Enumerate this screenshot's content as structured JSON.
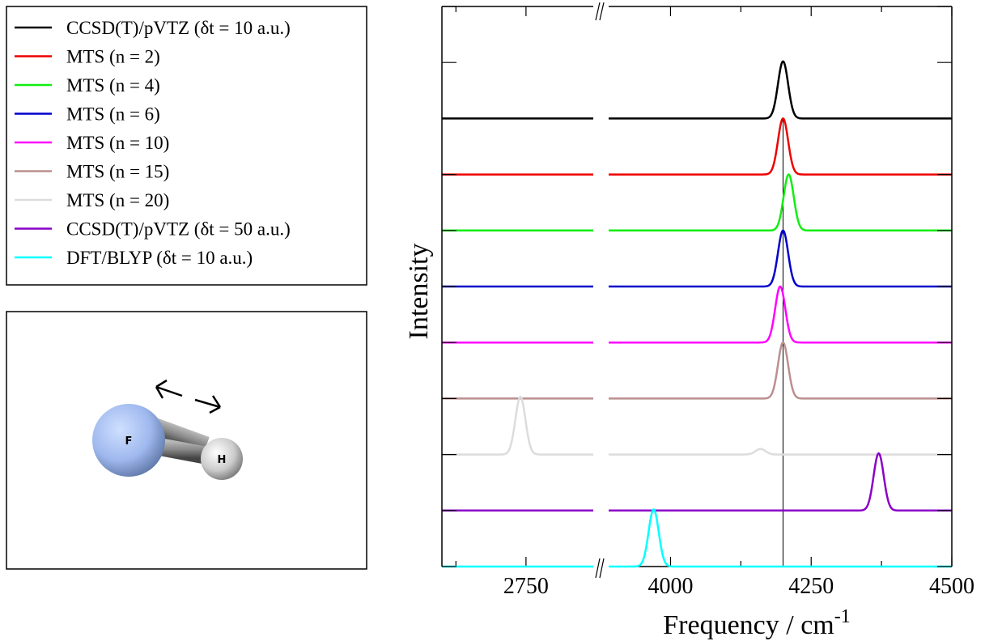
{
  "chart_data": {
    "type": "offset-spectra",
    "ylabel": "Intensity",
    "xlabel": "Frequency / cm",
    "xlabel_sup": "-1",
    "ylim": [
      0,
      10
    ],
    "yticks": [
      0,
      1,
      2,
      3,
      4,
      5,
      6,
      7,
      8,
      9,
      10
    ],
    "peak_sigma": 9,
    "reference_line": 4200,
    "segments": [
      {
        "xlim": [
          2600,
          2870
        ],
        "xticks": [
          2750
        ],
        "xminorticks": [
          2625
        ]
      },
      {
        "xlim": [
          3890,
          4500
        ],
        "xticks": [
          4000,
          4250,
          4500
        ],
        "xminorticks": [
          4125,
          4375
        ]
      }
    ],
    "series": [
      {
        "name": "CCSD(T)/pVTZ (δt = 10 a.u.)",
        "color": "#000000",
        "offset": 8,
        "peaks": [
          {
            "x": 4200,
            "height": 1.02
          }
        ]
      },
      {
        "name": "MTS (n = 2)",
        "color": "#ee0000",
        "offset": 7,
        "peaks": [
          {
            "x": 4200,
            "height": 1.0
          }
        ]
      },
      {
        "name": "MTS (n = 4)",
        "color": "#11ee11",
        "offset": 6,
        "peaks": [
          {
            "x": 4210,
            "height": 1.0
          }
        ]
      },
      {
        "name": "MTS (n = 6)",
        "color": "#0000cc",
        "offset": 5,
        "peaks": [
          {
            "x": 4200,
            "height": 1.0
          }
        ]
      },
      {
        "name": "MTS (n = 10)",
        "color": "#ff00ff",
        "offset": 4,
        "peaks": [
          {
            "x": 4195,
            "height": 1.0
          }
        ]
      },
      {
        "name": "MTS (n = 15)",
        "color": "#bc8f8f",
        "offset": 3,
        "peaks": [
          {
            "x": 4200,
            "height": 1.0
          }
        ]
      },
      {
        "name": "MTS (n = 20)",
        "color": "#dcdcdc",
        "offset": 2,
        "peaks": [
          {
            "x": 2740,
            "height": 1.03
          },
          {
            "x": 4160,
            "height": 0.1
          }
        ]
      },
      {
        "name": "CCSD(T)/pVTZ (δt = 50 a.u.)",
        "color": "#8b00c8",
        "offset": 1,
        "peaks": [
          {
            "x": 4370,
            "height": 1.02
          }
        ]
      },
      {
        "name": "DFT/BLYP (δt = 10 a.u.)",
        "color": "#00ffff",
        "offset": 0,
        "peaks": [
          {
            "x": 3970,
            "height": 1.02
          }
        ]
      }
    ]
  },
  "molecule": {
    "atoms": [
      "F",
      "H"
    ]
  }
}
